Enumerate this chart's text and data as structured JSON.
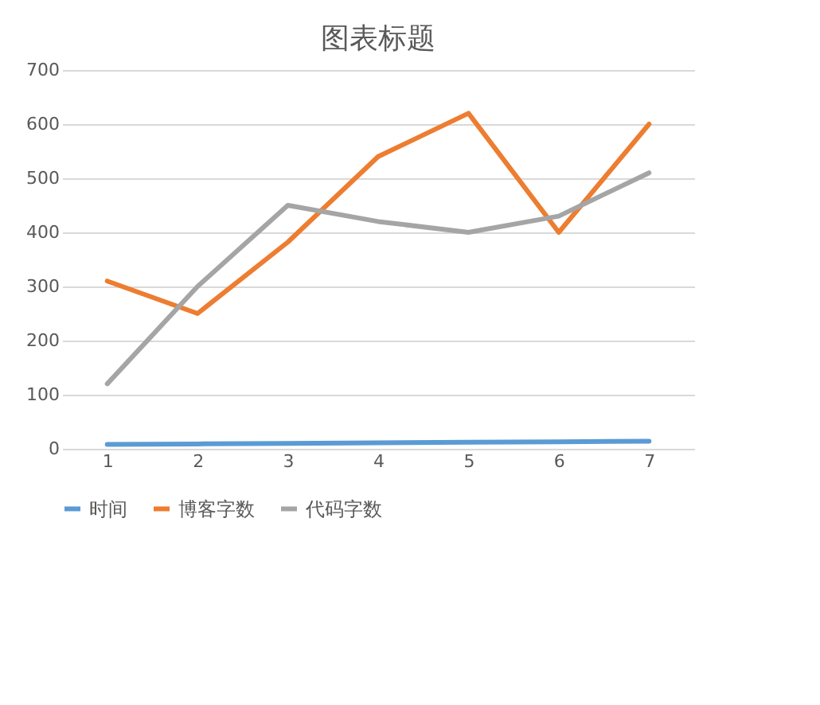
{
  "chart_data": {
    "type": "line",
    "title": "图表标题",
    "categories": [
      "1",
      "2",
      "3",
      "4",
      "5",
      "6",
      "7"
    ],
    "series": [
      {
        "name": "时间",
        "color": "#5b9bd5",
        "values": [
          8,
          9,
          10,
          11,
          12,
          13,
          14
        ]
      },
      {
        "name": "博客字数",
        "color": "#ed7d31",
        "values": [
          310,
          250,
          382,
          540,
          620,
          400,
          600
        ]
      },
      {
        "name": "代码字数",
        "color": "#a5a5a5",
        "values": [
          120,
          300,
          450,
          420,
          400,
          430,
          510
        ]
      }
    ],
    "ylim": [
      0,
      700
    ],
    "yticks": [
      0,
      100,
      200,
      300,
      400,
      500,
      600,
      700
    ],
    "grid": "y",
    "legend": "bottom",
    "marker": "none",
    "line_style": "solid"
  }
}
